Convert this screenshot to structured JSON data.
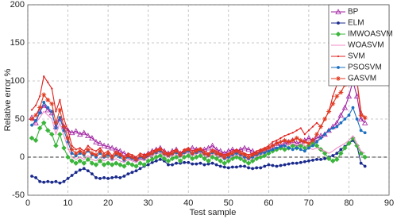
{
  "chart_data": {
    "type": "line",
    "xlabel": "Test sample",
    "ylabel": "Relative error %",
    "xlim": [
      0,
      90
    ],
    "ylim": [
      -50,
      200
    ],
    "xticks": [
      0,
      10,
      20,
      30,
      40,
      50,
      60,
      70,
      80,
      90
    ],
    "yticks": [
      -50,
      0,
      50,
      100,
      150,
      200
    ],
    "grid": true,
    "legend": "upper right",
    "reference_line": 0,
    "x": [
      1,
      2,
      3,
      4,
      5,
      6,
      7,
      8,
      9,
      10,
      11,
      12,
      13,
      14,
      15,
      16,
      17,
      18,
      19,
      20,
      21,
      22,
      23,
      24,
      25,
      26,
      27,
      28,
      29,
      30,
      31,
      32,
      33,
      34,
      35,
      36,
      37,
      38,
      39,
      40,
      41,
      42,
      43,
      44,
      45,
      46,
      47,
      48,
      49,
      50,
      51,
      52,
      53,
      54,
      55,
      56,
      57,
      58,
      59,
      60,
      61,
      62,
      63,
      64,
      65,
      66,
      67,
      68,
      69,
      70,
      71,
      72,
      73,
      74,
      75,
      76,
      77,
      78,
      79,
      80,
      81,
      82,
      83,
      84
    ],
    "series": [
      {
        "name": "BP",
        "color": "#a020a0",
        "marker": "triangle",
        "values": [
          52,
          45,
          60,
          68,
          62,
          58,
          40,
          50,
          40,
          35,
          32,
          34,
          30,
          32,
          28,
          25,
          20,
          18,
          15,
          14,
          12,
          10,
          8,
          5,
          2,
          0,
          -2,
          0,
          2,
          5,
          8,
          10,
          12,
          8,
          5,
          8,
          10,
          5,
          8,
          10,
          12,
          10,
          8,
          10,
          12,
          15,
          10,
          8,
          5,
          8,
          10,
          8,
          10,
          12,
          10,
          8,
          5,
          8,
          10,
          12,
          15,
          18,
          15,
          18,
          20,
          22,
          18,
          20,
          22,
          25,
          22,
          25,
          28,
          30,
          35,
          40,
          45,
          55,
          65,
          80,
          100,
          80,
          50,
          45
        ]
      },
      {
        "name": "ELM",
        "color": "#1a2a8c",
        "marker": "dot",
        "values": [
          -25,
          -27,
          -32,
          -33,
          -32,
          -33,
          -32,
          -34,
          -32,
          -28,
          -24,
          -20,
          -17,
          -15,
          -18,
          -22,
          -27,
          -28,
          -27,
          -28,
          -27,
          -26,
          -27,
          -25,
          -22,
          -20,
          -18,
          -15,
          -12,
          -10,
          -7,
          -5,
          -3,
          -5,
          -10,
          -10,
          -8,
          -8,
          -7,
          -7,
          -9,
          -9,
          -8,
          -10,
          -9,
          -8,
          -10,
          -12,
          -13,
          -14,
          -13,
          -13,
          -12,
          -12,
          -14,
          -15,
          -14,
          -14,
          -12,
          -10,
          -11,
          -12,
          -11,
          -10,
          -9,
          -8,
          -8,
          -7,
          -6,
          -5,
          -4,
          -3,
          -3,
          -2,
          0,
          2,
          5,
          10,
          14,
          18,
          22,
          15,
          -8,
          -12
        ]
      },
      {
        "name": "IMWOASVM",
        "color": "#3cb53c",
        "marker": "diamond",
        "values": [
          25,
          22,
          38,
          45,
          35,
          30,
          15,
          30,
          12,
          0,
          -5,
          -8,
          -5,
          -8,
          -3,
          -8,
          -10,
          -5,
          -10,
          -8,
          -10,
          -8,
          -10,
          -12,
          -8,
          -10,
          -12,
          -8,
          -10,
          -5,
          -3,
          0,
          2,
          -2,
          -5,
          -2,
          0,
          -5,
          0,
          2,
          -2,
          0,
          2,
          -2,
          -5,
          0,
          -2,
          -5,
          -8,
          -5,
          -2,
          0,
          -2,
          -5,
          -8,
          -5,
          -2,
          0,
          2,
          5,
          8,
          10,
          12,
          10,
          12,
          15,
          12,
          15,
          12,
          15,
          18,
          15,
          10,
          5,
          -2,
          -5,
          -3,
          5,
          12,
          18,
          25,
          15,
          5,
          0
        ]
      },
      {
        "name": "WOASVM",
        "color": "#f08cc8",
        "marker": "none",
        "values": [
          40,
          45,
          52,
          60,
          55,
          50,
          30,
          45,
          28,
          12,
          0,
          -3,
          0,
          -3,
          2,
          -3,
          -5,
          0,
          -5,
          -2,
          -5,
          -2,
          -5,
          -7,
          -3,
          -5,
          -7,
          -3,
          -5,
          0,
          2,
          4,
          6,
          2,
          0,
          2,
          4,
          0,
          4,
          6,
          2,
          4,
          6,
          2,
          0,
          4,
          2,
          0,
          -3,
          -2,
          1,
          3,
          1,
          -2,
          -4,
          -2,
          1,
          3,
          5,
          8,
          10,
          12,
          14,
          15,
          16,
          18,
          16,
          18,
          15,
          12,
          10,
          12,
          10,
          8,
          5,
          8,
          12,
          15,
          18,
          22,
          28,
          18,
          8,
          5
        ]
      },
      {
        "name": "SVM",
        "color": "#e0201c",
        "marker": "small",
        "values": [
          62,
          68,
          80,
          106,
          98,
          90,
          60,
          75,
          50,
          35,
          15,
          10,
          12,
          8,
          15,
          10,
          8,
          12,
          5,
          8,
          2,
          8,
          5,
          0,
          5,
          3,
          0,
          5,
          3,
          5,
          8,
          10,
          12,
          8,
          5,
          8,
          10,
          5,
          10,
          12,
          8,
          10,
          12,
          8,
          5,
          10,
          8,
          5,
          3,
          5,
          8,
          10,
          8,
          5,
          3,
          5,
          8,
          10,
          12,
          15,
          20,
          22,
          25,
          28,
          30,
          32,
          35,
          38,
          30,
          35,
          40,
          45,
          40,
          50,
          60,
          80,
          95,
          105,
          115,
          130,
          120,
          100,
          60,
          50
        ]
      },
      {
        "name": "PSOSVM",
        "color": "#1a6fc0",
        "marker": "dot",
        "values": [
          42,
          48,
          58,
          72,
          65,
          60,
          38,
          52,
          35,
          20,
          5,
          2,
          5,
          3,
          8,
          3,
          0,
          5,
          0,
          3,
          -2,
          3,
          0,
          -4,
          0,
          -2,
          -4,
          0,
          -2,
          2,
          4,
          6,
          8,
          4,
          2,
          4,
          6,
          2,
          6,
          8,
          4,
          6,
          8,
          4,
          2,
          6,
          4,
          2,
          -2,
          0,
          3,
          5,
          3,
          0,
          -2,
          0,
          3,
          5,
          6,
          8,
          10,
          12,
          14,
          15,
          12,
          10,
          12,
          10,
          8,
          12,
          15,
          20,
          25,
          30,
          35,
          38,
          40,
          45,
          50,
          55,
          65,
          50,
          35,
          32
        ]
      },
      {
        "name": "GASVM",
        "color": "#e03a20",
        "marker": "star",
        "values": [
          50,
          55,
          65,
          82,
          75,
          70,
          45,
          62,
          40,
          25,
          10,
          5,
          8,
          5,
          10,
          5,
          3,
          8,
          2,
          5,
          0,
          5,
          3,
          -2,
          2,
          0,
          -3,
          2,
          0,
          3,
          5,
          8,
          10,
          5,
          3,
          5,
          8,
          3,
          8,
          10,
          5,
          8,
          10,
          5,
          3,
          8,
          5,
          3,
          0,
          3,
          5,
          8,
          5,
          3,
          0,
          3,
          5,
          8,
          10,
          12,
          15,
          18,
          20,
          22,
          20,
          22,
          25,
          22,
          20,
          18,
          22,
          30,
          40,
          50,
          60,
          70,
          80,
          85,
          95,
          110,
          122,
          100,
          55,
          52
        ]
      }
    ]
  }
}
